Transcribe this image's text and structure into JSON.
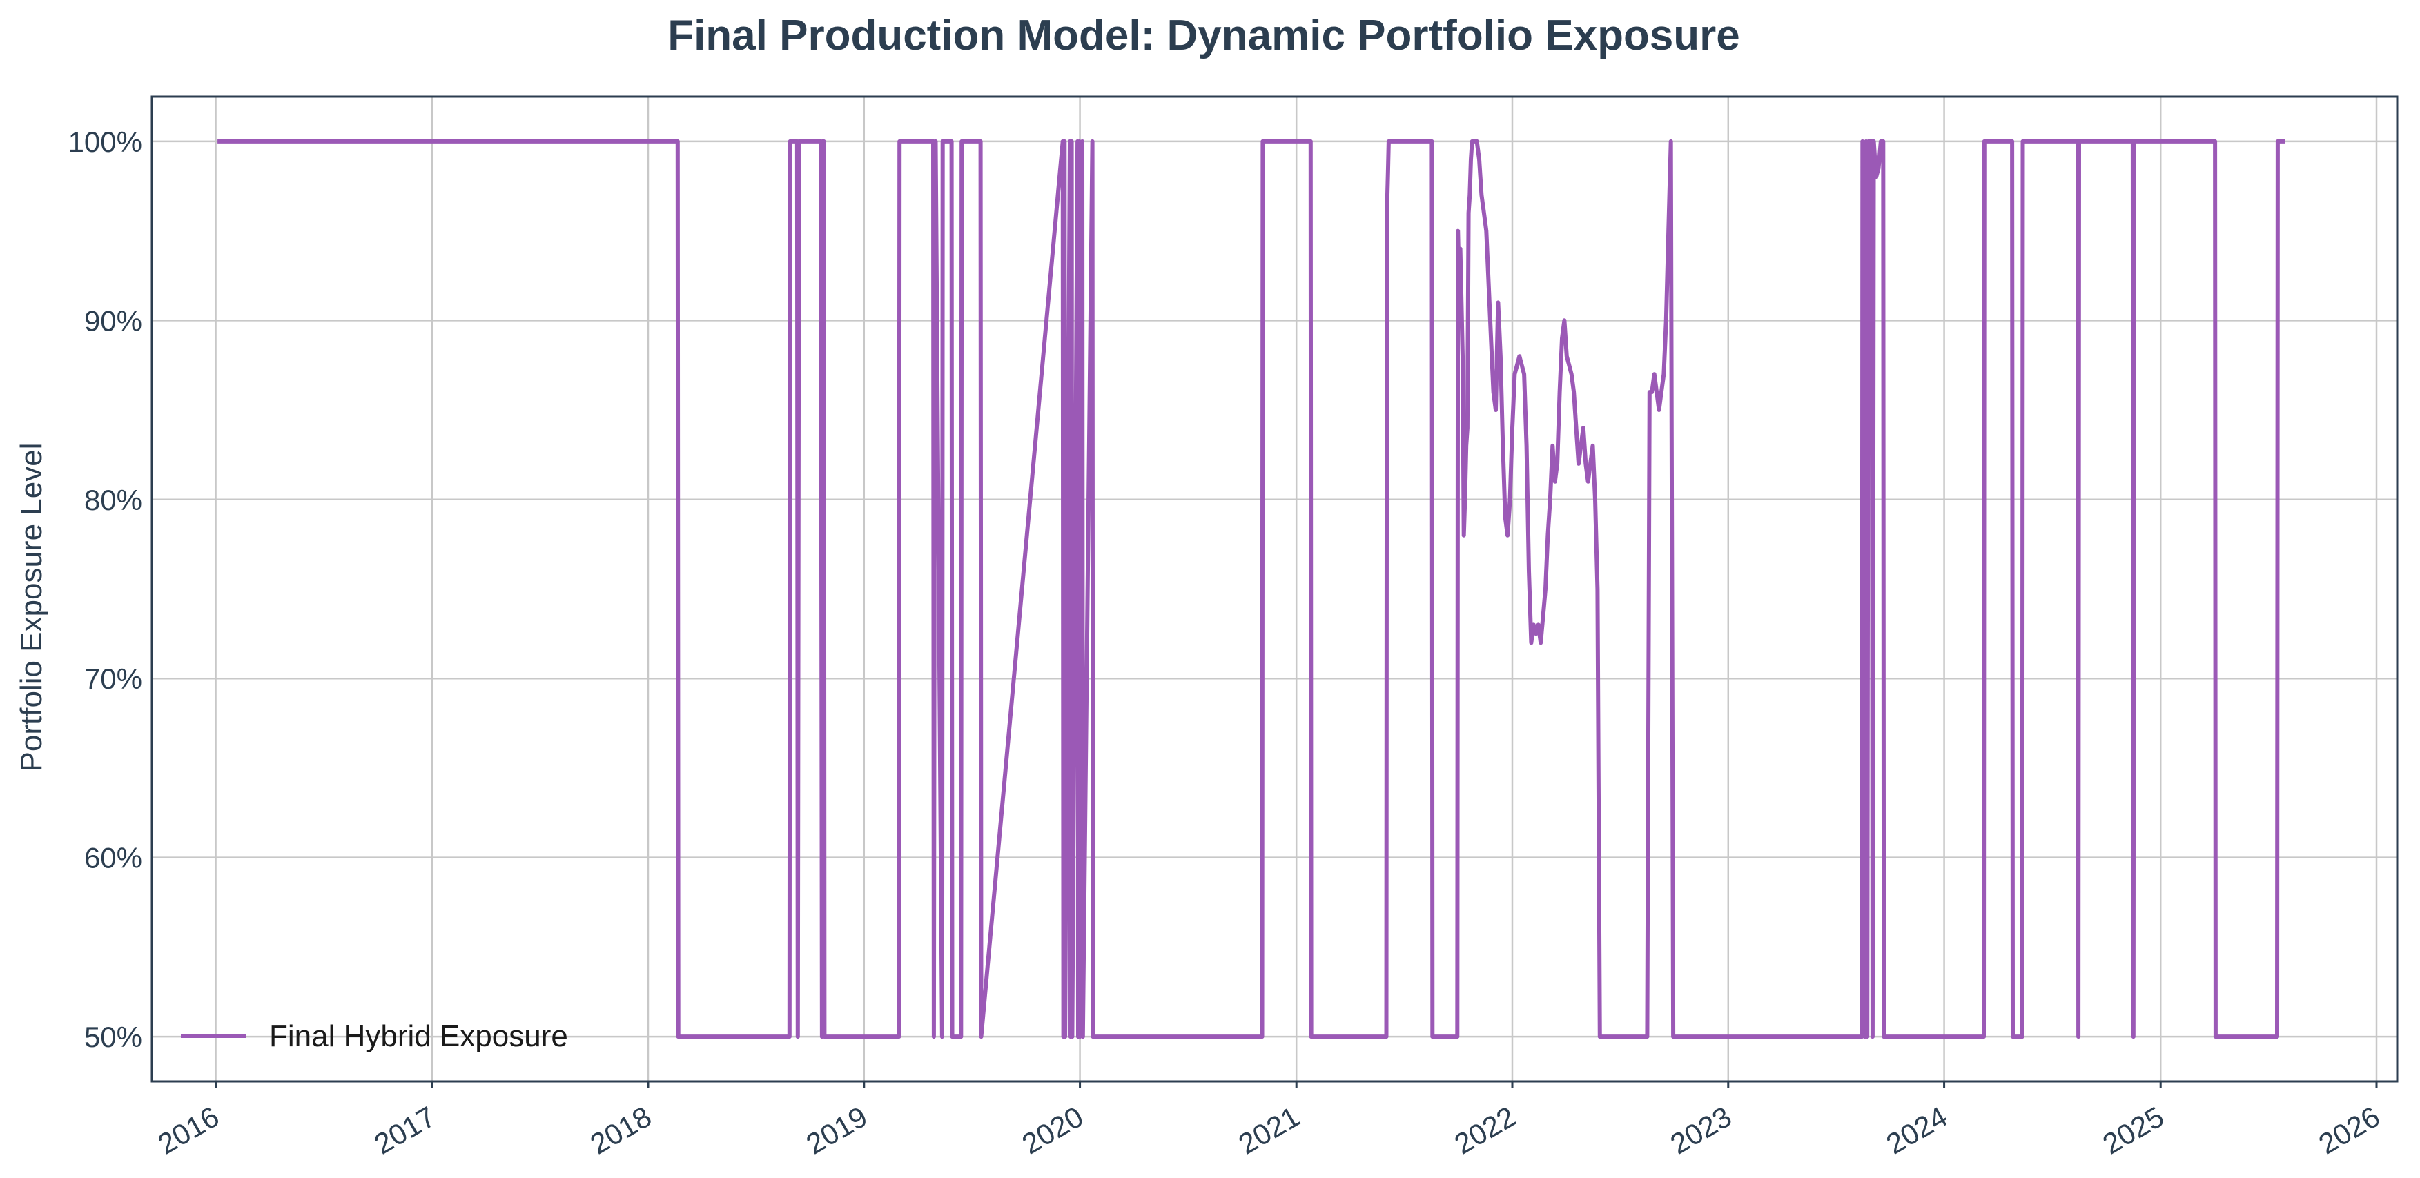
{
  "chart_data": {
    "type": "line",
    "title": "Final Production Model: Dynamic Portfolio Exposure",
    "xlabel": "",
    "ylabel": "Portfolio Exposure Level",
    "x_tick_labels": [
      "2016",
      "2017",
      "2018",
      "2019",
      "2020",
      "2021",
      "2022",
      "2023",
      "2024",
      "2025",
      "2026"
    ],
    "y_tick_labels": [
      "50%",
      "60%",
      "70%",
      "80%",
      "90%",
      "100%"
    ],
    "y_ticks": [
      0.5,
      0.6,
      0.7,
      0.8,
      0.9,
      1.0
    ],
    "xlim": [
      "2015-09-15",
      "2026-02-05"
    ],
    "ylim": [
      0.475,
      1.025
    ],
    "grid": true,
    "legend_position": "lower-left",
    "colors": {
      "series": "#9b59b6",
      "text": "#2c3e50",
      "grid": "#c8c8c8",
      "axes": "#2c3e50"
    },
    "series": [
      {
        "name": "Final Hybrid Exposure",
        "x": [
          "2016-01-04",
          "2018-02-20",
          "2018-02-21",
          "2018-08-28",
          "2018-08-29",
          "2018-09-10",
          "2018-09-11",
          "2018-09-13",
          "2018-10-20",
          "2018-10-22",
          "2018-10-23",
          "2018-10-25",
          "2018-10-26",
          "2019-03-01",
          "2019-03-02",
          "2019-04-28",
          "2019-04-29",
          "2019-05-01",
          "2019-05-02",
          "2019-05-13",
          "2019-05-14",
          "2019-05-29",
          "2019-05-30",
          "2019-06-14",
          "2019-06-15",
          "2019-07-17",
          "2019-07-18",
          "2019-12-03",
          "2019-12-04",
          "2019-12-06",
          "2019-12-07",
          "2019-12-15",
          "2019-12-16",
          "2019-12-18",
          "2019-12-19",
          "2019-12-28",
          "2019-12-29",
          "2019-12-31",
          "2020-01-01",
          "2020-01-05",
          "2020-01-06",
          "2020-01-22",
          "2020-01-23",
          "2020-11-04",
          "2020-11-05",
          "2021-01-25",
          "2021-01-26",
          "2021-06-02",
          "2021-06-03",
          "2021-06-05",
          "2021-06-06",
          "2021-06-08",
          "2021-06-12",
          "2021-06-16",
          "2021-06-20",
          "2021-08-18",
          "2021-08-19",
          "2021-09-30",
          "2021-10-01",
          "2021-10-03",
          "2021-10-05",
          "2021-10-07",
          "2021-10-09",
          "2021-10-11",
          "2021-10-13",
          "2021-10-15",
          "2021-10-17",
          "2021-10-19",
          "2021-10-21",
          "2021-10-23",
          "2021-10-25",
          "2021-10-27",
          "2021-10-29",
          "2021-11-02",
          "2021-11-06",
          "2021-11-10",
          "2021-11-14",
          "2021-11-18",
          "2021-11-22",
          "2021-11-26",
          "2021-11-30",
          "2021-12-04",
          "2021-12-08",
          "2021-12-12",
          "2021-12-16",
          "2021-12-20",
          "2021-12-24",
          "2021-12-28",
          "2022-01-01",
          "2022-01-05",
          "2022-01-09",
          "2022-01-13",
          "2022-01-17",
          "2022-01-21",
          "2022-01-25",
          "2022-01-29",
          "2022-02-02",
          "2022-02-06",
          "2022-02-10",
          "2022-02-14",
          "2022-02-18",
          "2022-02-22",
          "2022-02-26",
          "2022-03-02",
          "2022-03-06",
          "2022-03-10",
          "2022-03-14",
          "2022-03-18",
          "2022-03-22",
          "2022-03-26",
          "2022-03-30",
          "2022-04-03",
          "2022-04-07",
          "2022-04-11",
          "2022-04-15",
          "2022-04-19",
          "2022-04-23",
          "2022-04-27",
          "2022-05-01",
          "2022-05-05",
          "2022-05-09",
          "2022-05-13",
          "2022-05-17",
          "2022-05-21",
          "2022-05-25",
          "2022-05-29",
          "2022-06-02",
          "2022-06-06",
          "2022-06-10",
          "2022-06-14",
          "2022-06-18",
          "2022-06-22",
          "2022-06-26",
          "2022-06-30",
          "2022-07-04",
          "2022-07-08",
          "2022-07-12",
          "2022-07-16",
          "2022-07-20",
          "2022-07-24",
          "2022-07-28",
          "2022-08-01",
          "2022-08-05",
          "2022-08-09",
          "2022-08-13",
          "2022-08-17",
          "2022-08-21",
          "2022-08-25",
          "2022-08-29",
          "2022-09-02",
          "2022-09-06",
          "2022-09-10",
          "2022-09-14",
          "2022-09-18",
          "2022-09-22",
          "2022-09-26",
          "2022-09-30",
          "2022-10-04",
          "2022-10-08",
          "2022-10-12",
          "2022-10-16",
          "2022-10-20",
          "2022-10-24",
          "2022-10-28",
          "2022-11-01",
          "2022-11-05",
          "2022-11-09",
          "2022-11-13",
          "2022-11-17",
          "2022-11-21",
          "2022-11-25",
          "2022-11-29",
          "2022-12-03",
          "2022-12-07",
          "2022-12-11",
          "2022-12-15",
          "2022-12-19",
          "2022-12-23",
          "2022-12-27",
          "2022-12-31",
          "2023-01-04",
          "2023-01-08",
          "2023-01-12",
          "2023-01-16",
          "2023-01-20",
          "2023-01-24",
          "2023-01-28",
          "2023-02-01",
          "2023-02-05",
          "2023-02-09",
          "2023-02-13",
          "2023-02-17",
          "2023-02-21",
          "2023-02-25",
          "2023-03-01",
          "2023-03-05",
          "2023-03-09",
          "2023-03-13",
          "2023-03-17",
          "2023-03-21"
        ],
        "y": [
          1.0,
          1.0,
          0.5,
          0.5,
          1.0,
          1.0,
          0.5,
          1.0,
          1.0,
          0.5,
          1.0,
          1.0,
          0.5,
          0.5,
          1.0,
          1.0,
          0.5,
          1.0,
          1.0,
          0.5,
          1.0,
          1.0,
          0.5,
          0.5,
          1.0,
          1.0,
          0.5,
          1.0,
          0.5,
          1.0,
          0.5,
          1.0,
          0.5,
          1.0,
          0.5,
          1.0,
          0.5,
          1.0,
          0.5,
          1.0,
          0.5,
          1.0,
          0.5,
          0.5,
          1.0,
          1.0,
          0.5,
          0.5,
          0.96,
          0.985,
          1.0,
          1.0,
          1.0,
          1.0,
          1.0,
          1.0,
          0.5,
          0.5,
          0.95,
          0.92,
          0.94,
          0.91,
          0.88,
          0.78,
          0.8,
          0.83,
          0.84,
          0.96,
          0.97,
          0.99,
          1.0,
          1.0,
          1.0,
          1.0,
          0.99,
          0.97,
          0.96,
          0.95,
          0.92,
          0.89,
          0.86,
          0.85,
          0.91,
          0.88,
          0.83,
          0.79,
          0.78,
          0.8,
          0.84,
          0.87,
          0.875,
          0.88,
          0.875,
          0.87,
          0.83,
          0.76,
          0.72,
          0.73,
          0.725,
          0.73,
          0.72,
          0.735,
          0.75,
          0.78,
          0.8,
          0.83,
          0.81,
          0.82,
          0.86,
          0.89,
          0.9,
          0.88,
          0.875,
          0.87,
          0.86,
          0.84,
          0.82,
          0.83,
          0.84,
          0.82,
          0.81,
          0.82,
          0.83,
          0.8,
          0.75,
          0.5,
          0.5,
          0.5,
          0.5,
          0.5,
          0.5,
          0.5,
          0.5,
          0.5,
          0.5,
          0.5,
          0.5,
          0.5,
          0.5,
          0.5,
          0.5,
          0.5,
          0.5,
          0.5,
          0.5,
          0.5,
          0.86,
          0.86,
          0.87,
          0.86,
          0.85,
          0.86,
          0.87,
          0.9,
          0.95,
          1.0,
          0.5,
          0.5,
          0.5,
          0.5,
          0.5,
          0.5,
          0.5,
          0.5,
          0.5,
          0.5,
          0.5,
          0.5,
          0.5,
          0.5,
          0.5,
          0.5,
          0.5,
          0.5,
          0.5,
          0.5,
          0.5,
          0.5,
          0.5,
          0.5,
          0.5,
          0.5,
          0.5,
          0.5,
          0.5,
          0.5,
          0.5,
          0.5,
          0.5,
          0.5,
          0.5,
          0.5,
          0.5,
          0.5,
          0.5,
          0.5,
          0.5,
          0.5,
          0.5,
          0.5
        ]
      }
    ],
    "segments_after_2023": [
      [
        "2023-08-15",
        0.5
      ],
      [
        "2023-08-16",
        1.0
      ],
      [
        "2023-08-20",
        0.5
      ],
      [
        "2023-08-22",
        1.0
      ],
      [
        "2023-08-24",
        0.5
      ],
      [
        "2023-08-26",
        1.0
      ],
      [
        "2023-09-01",
        1.0
      ],
      [
        "2023-09-02",
        0.5
      ],
      [
        "2023-09-04",
        1.0
      ],
      [
        "2023-09-08",
        0.98
      ],
      [
        "2023-09-12",
        0.985
      ],
      [
        "2023-09-16",
        1.0
      ],
      [
        "2023-09-20",
        1.0
      ],
      [
        "2023-09-21",
        0.5
      ],
      [
        "2024-03-08",
        0.5
      ],
      [
        "2024-03-09",
        1.0
      ],
      [
        "2024-04-25",
        1.0
      ],
      [
        "2024-04-26",
        0.5
      ],
      [
        "2024-05-12",
        0.5
      ],
      [
        "2024-05-13",
        1.0
      ],
      [
        "2024-08-14",
        1.0
      ],
      [
        "2024-08-15",
        0.5
      ],
      [
        "2024-08-16",
        1.0
      ],
      [
        "2024-11-15",
        1.0
      ],
      [
        "2024-11-16",
        0.5
      ],
      [
        "2024-11-17",
        1.0
      ],
      [
        "2025-04-03",
        1.0
      ],
      [
        "2025-04-04",
        0.5
      ],
      [
        "2025-07-17",
        0.5
      ],
      [
        "2025-07-18",
        1.0
      ],
      [
        "2025-07-31",
        1.0
      ]
    ]
  }
}
